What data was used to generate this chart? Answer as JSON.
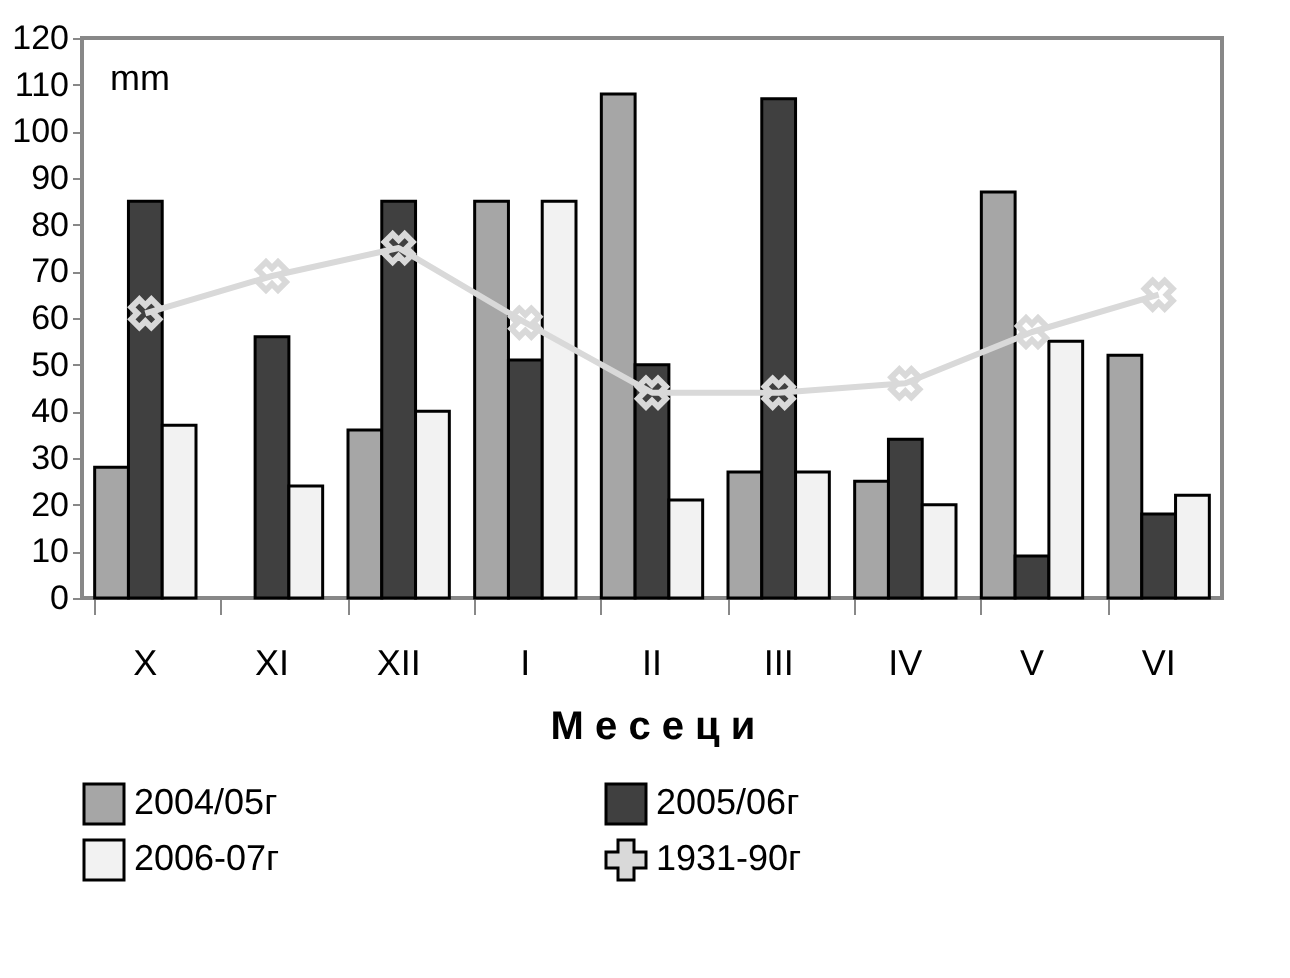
{
  "chart_data": {
    "type": "bar",
    "xlabel": "М е с е ц и",
    "annotations": [
      "mm"
    ],
    "categories": [
      "X",
      "XI",
      "XII",
      "I",
      "II",
      "III",
      "IV",
      "V",
      "VI"
    ],
    "series": [
      {
        "name": "2004/05г",
        "color": "#a6a6a6",
        "values": [
          28,
          null,
          36,
          85,
          108,
          27,
          25,
          87,
          52
        ]
      },
      {
        "name": "2005/06г",
        "color": "#404040",
        "values": [
          85,
          56,
          85,
          51,
          50,
          107,
          34,
          9,
          18
        ]
      },
      {
        "name": "2006-07г",
        "color": "#f2f2f2",
        "values": [
          37,
          24,
          40,
          85,
          21,
          27,
          20,
          55,
          22
        ]
      },
      {
        "name": "1931-90г",
        "color": "#d9d9d9",
        "type": "line",
        "marker": "cross",
        "values": [
          61,
          69,
          75,
          59,
          44,
          44,
          46,
          57,
          65
        ]
      }
    ],
    "ylim": [
      0,
      120
    ],
    "yticks": [
      0,
      10,
      20,
      30,
      40,
      50,
      60,
      70,
      80,
      90,
      100,
      110,
      120
    ],
    "grid": false,
    "legend": "bottom"
  }
}
